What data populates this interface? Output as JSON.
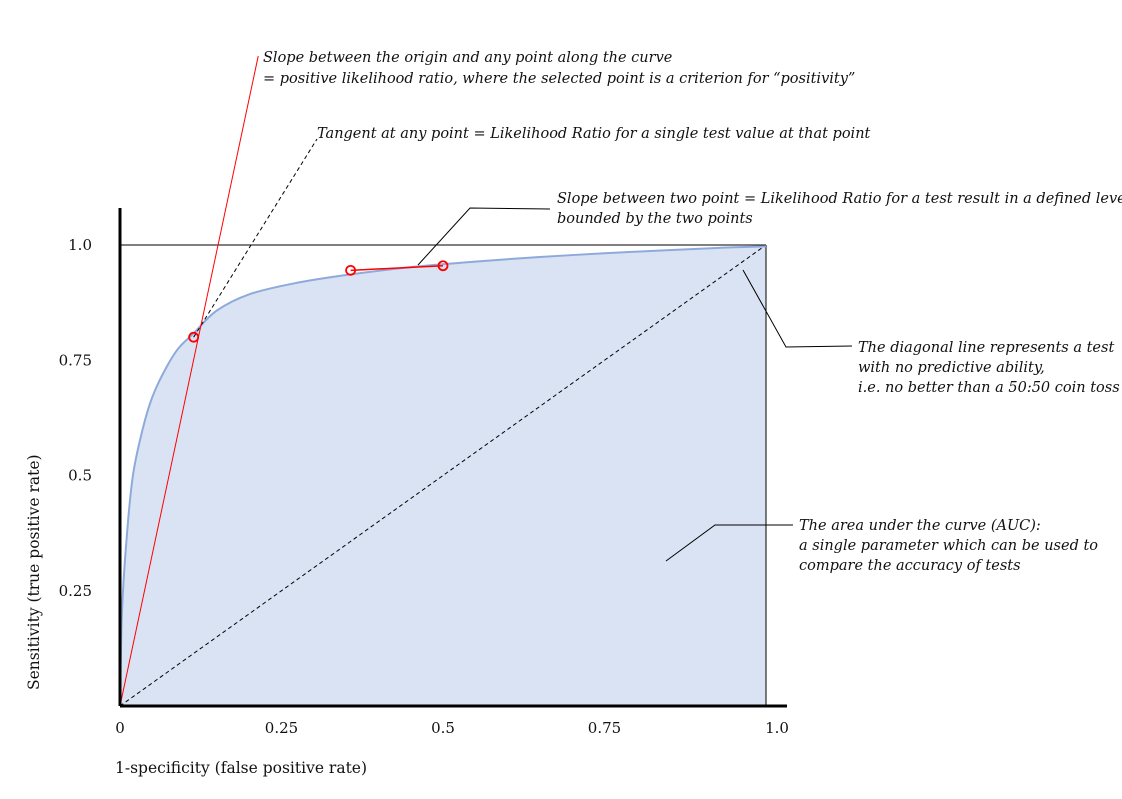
{
  "chart_data": {
    "type": "line",
    "xlabel": "1-specificity (false positive rate)",
    "ylabel": "Sensitivity (true positive rate)",
    "xlim": [
      0,
      1
    ],
    "ylim": [
      0,
      1
    ],
    "x_ticks": [
      {
        "value": 0,
        "label": "0"
      },
      {
        "value": 0.25,
        "label": "0.25"
      },
      {
        "value": 0.5,
        "label": "0.5"
      },
      {
        "value": 0.75,
        "label": "0.75"
      },
      {
        "value": 1,
        "label": "1.0"
      }
    ],
    "y_ticks": [
      {
        "value": 0.25,
        "label": "0.25"
      },
      {
        "value": 0.5,
        "label": "0.5"
      },
      {
        "value": 0.75,
        "label": "0.75"
      },
      {
        "value": 1,
        "label": "1.0"
      }
    ],
    "series": [
      {
        "style": "roc-curve",
        "color": "#8eaadb",
        "fill": "#dae3f3",
        "points": [
          [
            0,
            0
          ],
          [
            0.003,
            0.2
          ],
          [
            0.01,
            0.36
          ],
          [
            0.02,
            0.5
          ],
          [
            0.035,
            0.6
          ],
          [
            0.05,
            0.67
          ],
          [
            0.07,
            0.73
          ],
          [
            0.09,
            0.775
          ],
          [
            0.115,
            0.81
          ],
          [
            0.15,
            0.858
          ],
          [
            0.2,
            0.893
          ],
          [
            0.27,
            0.917
          ],
          [
            0.35,
            0.935
          ],
          [
            0.45,
            0.952
          ],
          [
            0.55,
            0.964
          ],
          [
            0.65,
            0.974
          ],
          [
            0.75,
            0.982
          ],
          [
            0.85,
            0.989
          ],
          [
            0.93,
            0.994
          ],
          [
            1,
            0.997
          ]
        ]
      },
      {
        "style": "reference-diagonal",
        "dashed": true,
        "color": "#000000",
        "points": [
          [
            0,
            0
          ],
          [
            1,
            1
          ]
        ]
      },
      {
        "style": "reference-top",
        "color": "#000000",
        "points": [
          [
            0,
            1
          ],
          [
            1,
            1
          ]
        ]
      }
    ],
    "highlight_points": [
      {
        "x": 0.114,
        "y": 0.8,
        "color": "#ff0000"
      },
      {
        "x": 0.357,
        "y": 0.945,
        "color": "#ff0000"
      },
      {
        "x": 0.5,
        "y": 0.955,
        "color": "#ff0000"
      }
    ],
    "secant_line": {
      "color": "#ff0000",
      "from": [
        0.357,
        0.945
      ],
      "to": [
        0.5,
        0.955
      ]
    },
    "origin_line": {
      "color": "#ff0000",
      "from": [
        0,
        0
      ],
      "to": [
        0.214,
        1.41
      ]
    },
    "tangent_line": {
      "dashed": true,
      "color": "#000000",
      "from": [
        0.114,
        0.8
      ],
      "to": [
        0.305,
        1.23
      ]
    },
    "annotations": [
      {
        "id": "origin-slope",
        "lines": [
          "Slope between the origin and any point along the curve",
          "= positive likelihood ratio, where the selected point is a criterion for “positivity”"
        ]
      },
      {
        "id": "tangent",
        "lines": [
          "Tangent at any point = Likelihood Ratio for a single test value at that point"
        ]
      },
      {
        "id": "two-point-slope",
        "lines": [
          "Slope between two point = Likelihood Ratio for a test result in a defined level",
          "bounded by the two points"
        ]
      },
      {
        "id": "diagonal",
        "lines": [
          "The diagonal line represents a test",
          "with no predictive ability,",
          "i.e. no better than a 50:50 coin toss"
        ]
      },
      {
        "id": "auc",
        "lines": [
          "The area under the curve (AUC):",
          "a single parameter which can be used to",
          "compare the accuracy of tests"
        ]
      }
    ]
  }
}
